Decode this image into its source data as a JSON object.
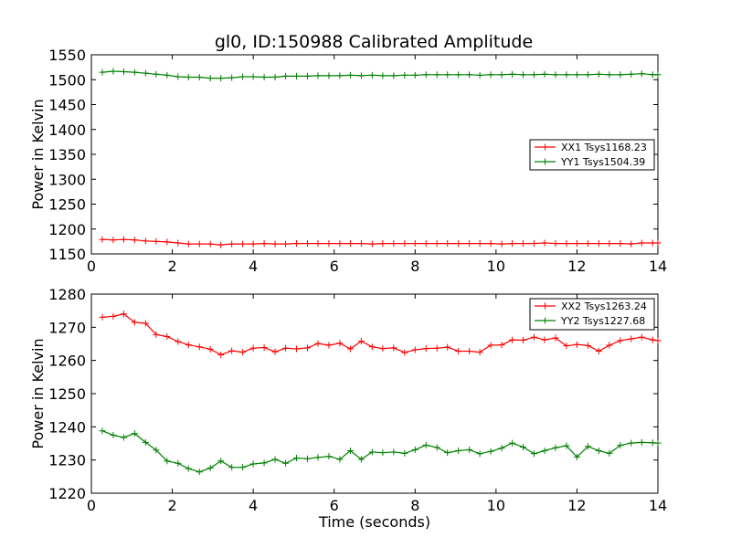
{
  "figure": {
    "title": "gl0, ID:150988 Calibrated Amplitude"
  },
  "chart_data": [
    {
      "type": "line",
      "title": "gl0, ID:150988 Calibrated Amplitude",
      "xlabel": "",
      "ylabel": "Power in Kelvin",
      "xlim": [
        0,
        14
      ],
      "ylim": [
        1150,
        1550
      ],
      "x_ticks": [
        "0",
        "2",
        "4",
        "6",
        "8",
        "10",
        "12",
        "14"
      ],
      "y_ticks": [
        "1150",
        "1200",
        "1250",
        "1300",
        "1350",
        "1400",
        "1450",
        "1500",
        "1550"
      ],
      "legend_position": "center-right",
      "grid": false,
      "x": [
        0.27,
        0.54,
        0.8,
        1.07,
        1.34,
        1.6,
        1.87,
        2.14,
        2.4,
        2.67,
        2.94,
        3.2,
        3.47,
        3.74,
        4.0,
        4.27,
        4.54,
        4.8,
        5.07,
        5.34,
        5.6,
        5.87,
        6.14,
        6.4,
        6.67,
        6.94,
        7.2,
        7.47,
        7.74,
        8.0,
        8.27,
        8.54,
        8.8,
        9.07,
        9.34,
        9.6,
        9.87,
        10.14,
        10.4,
        10.67,
        10.94,
        11.2,
        11.47,
        11.74,
        12.0,
        12.27,
        12.54,
        12.8,
        13.07,
        13.34,
        13.6,
        13.87,
        14.0
      ],
      "series": [
        {
          "name": "XX1 Tsys1168.23",
          "color": "#ff0000",
          "values": [
            1179,
            1178,
            1179,
            1178,
            1176,
            1175,
            1174,
            1172,
            1170,
            1170,
            1170,
            1168,
            1170,
            1170,
            1170,
            1171,
            1170,
            1170,
            1171,
            1171,
            1171,
            1171,
            1171,
            1171,
            1171,
            1170,
            1171,
            1171,
            1171,
            1171,
            1171,
            1171,
            1171,
            1171,
            1171,
            1171,
            1171,
            1170,
            1171,
            1171,
            1171,
            1172,
            1171,
            1171,
            1171,
            1171,
            1171,
            1171,
            1171,
            1170,
            1172,
            1172,
            1172
          ]
        },
        {
          "name": "YY1 Tsys1504.39",
          "color": "#008000",
          "values": [
            1515,
            1517,
            1516,
            1515,
            1513,
            1511,
            1509,
            1506,
            1505,
            1505,
            1503,
            1503,
            1504,
            1506,
            1506,
            1505,
            1505,
            1507,
            1507,
            1507,
            1508,
            1508,
            1508,
            1509,
            1508,
            1509,
            1508,
            1508,
            1509,
            1509,
            1510,
            1510,
            1510,
            1510,
            1510,
            1509,
            1510,
            1510,
            1511,
            1510,
            1510,
            1511,
            1510,
            1510,
            1510,
            1510,
            1511,
            1510,
            1510,
            1511,
            1512,
            1510,
            1510
          ]
        }
      ]
    },
    {
      "type": "line",
      "title": "",
      "xlabel": "Time (seconds)",
      "ylabel": "Power in Kelvin",
      "xlim": [
        0,
        14
      ],
      "ylim": [
        1220,
        1280
      ],
      "x_ticks": [
        "0",
        "2",
        "4",
        "6",
        "8",
        "10",
        "12",
        "14"
      ],
      "y_ticks": [
        "1220",
        "1230",
        "1240",
        "1250",
        "1260",
        "1270",
        "1280"
      ],
      "legend_position": "upper-right",
      "grid": false,
      "x": [
        0.27,
        0.54,
        0.8,
        1.07,
        1.34,
        1.6,
        1.87,
        2.14,
        2.4,
        2.67,
        2.94,
        3.2,
        3.47,
        3.74,
        4.0,
        4.27,
        4.54,
        4.8,
        5.07,
        5.34,
        5.6,
        5.87,
        6.14,
        6.4,
        6.67,
        6.94,
        7.2,
        7.47,
        7.74,
        8.0,
        8.27,
        8.54,
        8.8,
        9.07,
        9.34,
        9.6,
        9.87,
        10.14,
        10.4,
        10.67,
        10.94,
        11.2,
        11.47,
        11.74,
        12.0,
        12.27,
        12.54,
        12.8,
        13.07,
        13.34,
        13.6,
        13.87,
        14.0
      ],
      "series": [
        {
          "name": "XX2 Tsys1263.24",
          "color": "#ff0000",
          "values": [
            1273,
            1273.3,
            1274,
            1271.5,
            1271.2,
            1267.8,
            1267.2,
            1265.7,
            1264.7,
            1264.1,
            1263.4,
            1261.7,
            1262.9,
            1262.5,
            1263.7,
            1263.9,
            1262.6,
            1263.7,
            1263.5,
            1263.8,
            1265.1,
            1264.6,
            1265.2,
            1263.5,
            1265.8,
            1264.1,
            1263.6,
            1263.8,
            1262.4,
            1263.2,
            1263.6,
            1263.7,
            1264.0,
            1262.8,
            1262.8,
            1262.5,
            1264.6,
            1264.7,
            1266.2,
            1266.1,
            1267.0,
            1266.2,
            1266.8,
            1264.4,
            1264.8,
            1264.5,
            1262.8,
            1264.6,
            1266.0,
            1266.5,
            1267.0,
            1266.2,
            1266.0
          ]
        },
        {
          "name": "YY2 Tsys1227.68",
          "color": "#008000",
          "values": [
            1238.8,
            1237.5,
            1236.8,
            1238.0,
            1235.3,
            1233.0,
            1229.7,
            1229.0,
            1227.4,
            1226.4,
            1227.6,
            1229.7,
            1227.8,
            1227.8,
            1228.8,
            1229.1,
            1230.2,
            1229.0,
            1230.6,
            1230.4,
            1230.8,
            1231.1,
            1230.2,
            1232.8,
            1230.2,
            1232.4,
            1232.2,
            1232.4,
            1232.0,
            1233.1,
            1234.5,
            1233.8,
            1232.2,
            1232.8,
            1233.1,
            1231.9,
            1232.6,
            1233.6,
            1235.1,
            1233.9,
            1231.9,
            1232.8,
            1233.7,
            1234.3,
            1230.9,
            1234.1,
            1232.8,
            1232.0,
            1234.4,
            1235.1,
            1235.3,
            1235.2,
            1235.1
          ]
        }
      ]
    }
  ]
}
